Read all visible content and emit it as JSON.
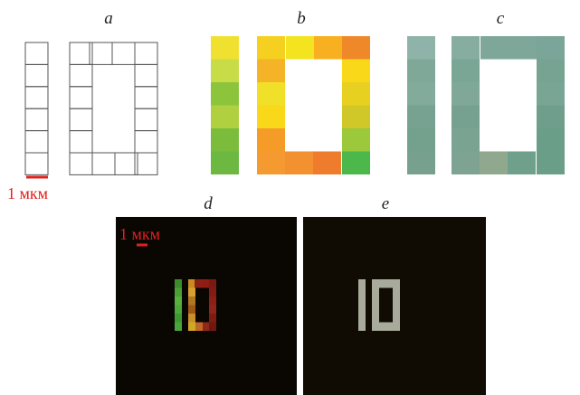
{
  "panels": [
    {
      "label": "a"
    },
    {
      "label": "b"
    },
    {
      "label": "c"
    },
    {
      "label": "d"
    },
    {
      "label": "e"
    }
  ],
  "scale_bars": [
    {
      "label": "1 мкм"
    },
    {
      "label": "1 мкм"
    }
  ]
}
